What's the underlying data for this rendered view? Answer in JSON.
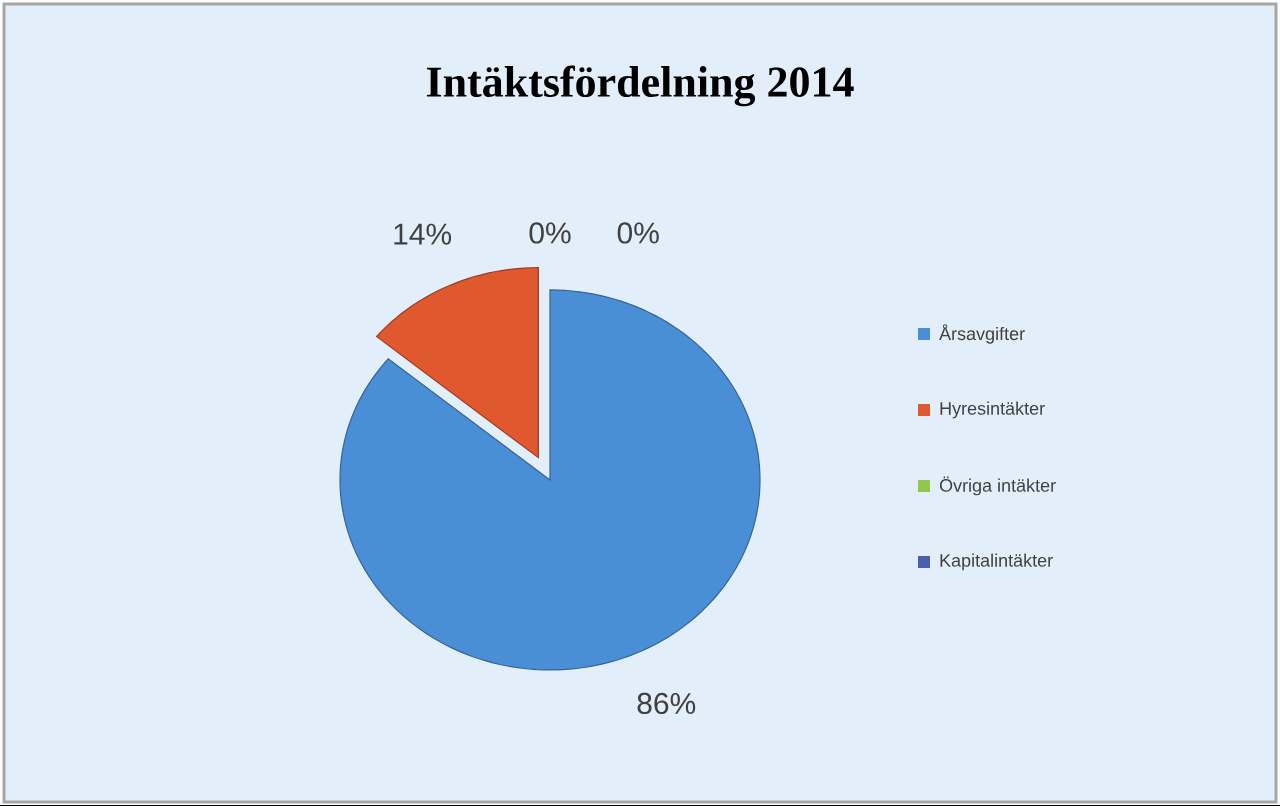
{
  "chart_data": {
    "type": "pie",
    "title": "Intäktsfördelning 2014",
    "categories": [
      "Årsavgifter",
      "Hyresintäkter",
      "Övriga intäkter",
      "Kapitalintäkter"
    ],
    "values": [
      86,
      14,
      0,
      0
    ],
    "value_labels": [
      "86%",
      "14%",
      "0%",
      "0%"
    ],
    "colors": [
      "#4a8fd6",
      "#e0582e",
      "#92c84a",
      "#4a5fae"
    ],
    "legend": "right"
  }
}
